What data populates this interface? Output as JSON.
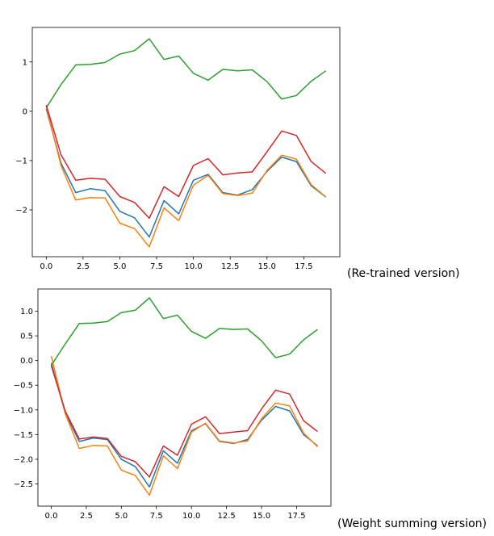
{
  "chart_data": [
    {
      "type": "line",
      "caption": "(Re-trained version)",
      "x": [
        0,
        1,
        2,
        3,
        4,
        5,
        6,
        7,
        8,
        9,
        10,
        11,
        12,
        13,
        14,
        15,
        16,
        17,
        18,
        19
      ],
      "xlim": [
        -0.95,
        19.95
      ],
      "ylim": [
        -2.95,
        1.7
      ],
      "xticks": [
        0.0,
        2.5,
        5.0,
        7.5,
        10.0,
        12.5,
        15.0,
        17.5
      ],
      "xtick_labels": [
        "0.0",
        "2.5",
        "5.0",
        "7.5",
        "10.0",
        "12.5",
        "15.0",
        "17.5"
      ],
      "yticks": [
        1,
        0,
        -1,
        -2
      ],
      "ytick_labels": [
        "1",
        "0",
        "−1",
        "−2"
      ],
      "series": [
        {
          "name": "blue",
          "color": "#1f77b4",
          "values": [
            0.05,
            -1.05,
            -1.65,
            -1.57,
            -1.61,
            -2.03,
            -2.16,
            -2.55,
            -1.81,
            -2.08,
            -1.4,
            -1.28,
            -1.65,
            -1.7,
            -1.59,
            -1.22,
            -0.93,
            -1.02,
            -1.51,
            -1.74
          ]
        },
        {
          "name": "orange",
          "color": "#ff7f0e",
          "values": [
            0.1,
            -1.1,
            -1.8,
            -1.75,
            -1.76,
            -2.27,
            -2.38,
            -2.75,
            -1.96,
            -2.22,
            -1.5,
            -1.3,
            -1.67,
            -1.71,
            -1.66,
            -1.2,
            -0.89,
            -0.97,
            -1.49,
            -1.74
          ]
        },
        {
          "name": "green",
          "color": "#2ca02c",
          "values": [
            0.07,
            0.54,
            0.94,
            0.95,
            0.99,
            1.16,
            1.23,
            1.47,
            1.05,
            1.12,
            0.77,
            0.63,
            0.85,
            0.82,
            0.84,
            0.6,
            0.25,
            0.32,
            0.61,
            0.82
          ]
        },
        {
          "name": "red",
          "color": "#d62728",
          "values": [
            0.13,
            -0.88,
            -1.4,
            -1.36,
            -1.38,
            -1.73,
            -1.85,
            -2.17,
            -1.53,
            -1.73,
            -1.1,
            -0.96,
            -1.29,
            -1.25,
            -1.23,
            -0.82,
            -0.4,
            -0.49,
            -1.02,
            -1.26
          ]
        }
      ]
    },
    {
      "type": "line",
      "caption": "(Weight summing version)",
      "x": [
        0,
        1,
        2,
        3,
        4,
        5,
        6,
        7,
        8,
        9,
        10,
        11,
        12,
        13,
        14,
        15,
        16,
        17,
        18,
        19
      ],
      "xlim": [
        -0.95,
        19.95
      ],
      "ylim": [
        -2.95,
        1.45
      ],
      "xticks": [
        0.0,
        2.5,
        5.0,
        7.5,
        10.0,
        12.5,
        15.0,
        17.5
      ],
      "xtick_labels": [
        "0.0",
        "2.5",
        "5.0",
        "7.5",
        "10.0",
        "12.5",
        "15.0",
        "17.5"
      ],
      "yticks": [
        1.0,
        0.5,
        0.0,
        -0.5,
        -1.0,
        -1.5,
        -2.0,
        -2.5
      ],
      "ytick_labels": [
        "1.0",
        "0.5",
        "0.0",
        "−0.5",
        "−1.0",
        "−1.5",
        "−2.0",
        "−2.5"
      ],
      "series": [
        {
          "name": "blue",
          "color": "#1f77b4",
          "values": [
            -0.05,
            -1.06,
            -1.64,
            -1.57,
            -1.6,
            -2.0,
            -2.15,
            -2.56,
            -1.83,
            -2.08,
            -1.42,
            -1.28,
            -1.64,
            -1.68,
            -1.6,
            -1.21,
            -0.93,
            -1.02,
            -1.5,
            -1.73
          ]
        },
        {
          "name": "orange",
          "color": "#ff7f0e",
          "values": [
            0.09,
            -1.08,
            -1.78,
            -1.72,
            -1.73,
            -2.22,
            -2.33,
            -2.73,
            -1.93,
            -2.19,
            -1.45,
            -1.27,
            -1.63,
            -1.67,
            -1.63,
            -1.18,
            -0.86,
            -0.92,
            -1.47,
            -1.75
          ]
        },
        {
          "name": "green",
          "color": "#2ca02c",
          "values": [
            -0.1,
            0.34,
            0.75,
            0.76,
            0.79,
            0.97,
            1.02,
            1.27,
            0.85,
            0.92,
            0.59,
            0.45,
            0.65,
            0.63,
            0.64,
            0.4,
            0.06,
            0.13,
            0.42,
            0.63
          ]
        },
        {
          "name": "red",
          "color": "#d62728",
          "values": [
            -0.1,
            -1.03,
            -1.59,
            -1.55,
            -1.58,
            -1.94,
            -2.05,
            -2.36,
            -1.73,
            -1.92,
            -1.29,
            -1.14,
            -1.48,
            -1.45,
            -1.42,
            -0.98,
            -0.6,
            -0.68,
            -1.22,
            -1.44
          ]
        }
      ]
    }
  ]
}
